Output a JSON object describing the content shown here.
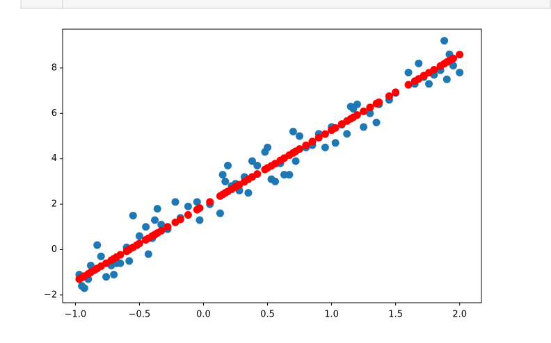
{
  "chart_data": {
    "type": "scatter",
    "xlim": [
      -1.1,
      2.17
    ],
    "ylim": [
      -2.34,
      9.71
    ],
    "xticks": [
      {
        "value": -1.0,
        "label": "−1.0"
      },
      {
        "value": -0.5,
        "label": "−0.5"
      },
      {
        "value": 0.0,
        "label": "0.0"
      },
      {
        "value": 0.5,
        "label": "0.5"
      },
      {
        "value": 1.0,
        "label": "1.0"
      },
      {
        "value": 1.5,
        "label": "1.5"
      },
      {
        "value": 2.0,
        "label": "2.0"
      }
    ],
    "yticks": [
      {
        "value": -2,
        "label": "−2"
      },
      0,
      2,
      4,
      6,
      8
    ],
    "grid": false,
    "series": [
      {
        "color": "#1f77b4",
        "x": [
          -0.97,
          -0.95,
          -0.93,
          -0.9,
          -0.88,
          -0.85,
          -0.83,
          -0.8,
          -0.76,
          -0.72,
          -0.7,
          -0.68,
          -0.65,
          -0.6,
          -0.58,
          -0.55,
          -0.52,
          -0.5,
          -0.45,
          -0.43,
          -0.4,
          -0.38,
          -0.36,
          -0.33,
          -0.28,
          -0.22,
          -0.18,
          -0.12,
          -0.05,
          -0.03,
          0.05,
          0.13,
          0.15,
          0.17,
          0.19,
          0.22,
          0.25,
          0.28,
          0.32,
          0.35,
          0.38,
          0.42,
          0.48,
          0.5,
          0.53,
          0.56,
          0.6,
          0.63,
          0.67,
          0.7,
          0.72,
          0.75,
          0.8,
          0.85,
          0.9,
          0.95,
          1.0,
          1.03,
          1.08,
          1.12,
          1.15,
          1.17,
          1.2,
          1.25,
          1.3,
          1.35,
          1.37,
          1.45,
          1.5,
          1.6,
          1.65,
          1.68,
          1.72,
          1.76,
          1.8,
          1.85,
          1.88,
          1.9,
          1.92,
          1.95,
          2.0
        ],
        "values": [
          -1.1,
          -1.6,
          -1.7,
          -1.3,
          -0.7,
          -0.9,
          0.2,
          -0.3,
          -1.2,
          -0.7,
          -1.1,
          -0.6,
          -0.6,
          0.1,
          -0.5,
          1.5,
          0.2,
          0.6,
          1.0,
          -0.2,
          0.5,
          1.3,
          1.8,
          1.1,
          0.9,
          2.1,
          1.4,
          1.9,
          2.1,
          1.3,
          2.0,
          1.6,
          3.3,
          3.0,
          3.7,
          2.8,
          2.9,
          2.6,
          3.2,
          2.5,
          3.9,
          3.7,
          4.3,
          4.5,
          3.1,
          3.0,
          3.8,
          3.3,
          3.3,
          5.2,
          3.9,
          5.0,
          4.5,
          4.6,
          5.1,
          4.5,
          5.4,
          4.7,
          5.5,
          5.1,
          6.3,
          6.2,
          6.4,
          5.4,
          6.0,
          5.6,
          6.4,
          6.6,
          6.9,
          7.8,
          7.3,
          8.2,
          7.6,
          7.3,
          7.7,
          7.9,
          9.2,
          7.5,
          8.6,
          8.1,
          7.8
        ]
      },
      {
        "color": "#ff0000",
        "x": [
          -0.97,
          -0.95,
          -0.93,
          -0.9,
          -0.88,
          -0.85,
          -0.83,
          -0.8,
          -0.76,
          -0.72,
          -0.7,
          -0.68,
          -0.65,
          -0.6,
          -0.58,
          -0.55,
          -0.52,
          -0.5,
          -0.45,
          -0.43,
          -0.4,
          -0.38,
          -0.36,
          -0.33,
          -0.28,
          -0.22,
          -0.18,
          -0.12,
          -0.05,
          -0.03,
          0.05,
          0.13,
          0.15,
          0.17,
          0.19,
          0.22,
          0.25,
          0.28,
          0.32,
          0.35,
          0.38,
          0.42,
          0.48,
          0.5,
          0.53,
          0.56,
          0.6,
          0.63,
          0.67,
          0.7,
          0.72,
          0.75,
          0.8,
          0.85,
          0.9,
          0.95,
          1.0,
          1.03,
          1.08,
          1.12,
          1.15,
          1.17,
          1.2,
          1.25,
          1.3,
          1.35,
          1.37,
          1.45,
          1.5,
          1.6,
          1.65,
          1.68,
          1.72,
          1.76,
          1.8,
          1.85,
          1.88,
          1.9,
          1.92,
          1.95,
          2.0
        ],
        "values": [
          -1.3,
          -1.23,
          -1.17,
          -1.07,
          -1.0,
          -0.9,
          -0.83,
          -0.73,
          -0.6,
          -0.47,
          -0.4,
          -0.33,
          -0.23,
          -0.07,
          0.0,
          0.1,
          0.2,
          0.27,
          0.43,
          0.5,
          0.6,
          0.66,
          0.73,
          0.83,
          1.0,
          1.2,
          1.33,
          1.53,
          1.76,
          1.83,
          2.1,
          2.36,
          2.43,
          2.5,
          2.56,
          2.66,
          2.76,
          2.86,
          2.99,
          3.1,
          3.2,
          3.33,
          3.53,
          3.6,
          3.69,
          3.79,
          3.93,
          4.03,
          4.16,
          4.26,
          4.33,
          4.43,
          4.59,
          4.76,
          4.93,
          5.09,
          5.26,
          5.36,
          5.53,
          5.66,
          5.76,
          5.83,
          5.93,
          6.09,
          6.26,
          6.43,
          6.49,
          6.76,
          6.93,
          7.26,
          7.42,
          7.52,
          7.66,
          7.79,
          7.92,
          8.09,
          8.19,
          8.26,
          8.32,
          8.42,
          8.59
        ]
      }
    ]
  }
}
